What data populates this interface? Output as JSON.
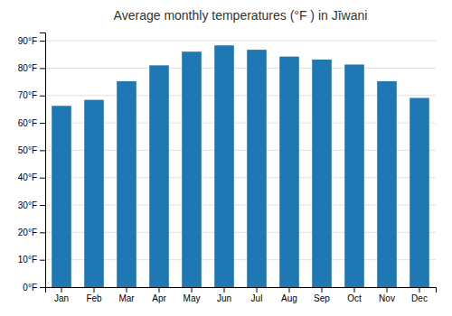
{
  "chart_data": {
    "type": "bar",
    "title": "Average monthly temperatures (°F ) in Jīwani",
    "categories": [
      "Jan",
      "Feb",
      "Mar",
      "Apr",
      "May",
      "Jun",
      "Jul",
      "Aug",
      "Sep",
      "Oct",
      "Nov",
      "Dec"
    ],
    "values": [
      66.2,
      68.4,
      75.2,
      81.0,
      86.0,
      88.3,
      86.7,
      84.2,
      83.1,
      81.3,
      75.2,
      69.1
    ],
    "ylim": [
      0,
      93
    ],
    "yticks": [
      {
        "value": 0,
        "label": "0°F"
      },
      {
        "value": 10,
        "label": "10°F"
      },
      {
        "value": 20,
        "label": "20°F"
      },
      {
        "value": 30,
        "label": "30°F"
      },
      {
        "value": 40,
        "label": "40°F"
      },
      {
        "value": 50,
        "label": "50°F"
      },
      {
        "value": 60,
        "label": "60°F"
      },
      {
        "value": 70,
        "label": "70°F"
      },
      {
        "value": 80,
        "label": "80°F"
      },
      {
        "value": 90,
        "label": "90°F"
      }
    ],
    "grid": true
  }
}
